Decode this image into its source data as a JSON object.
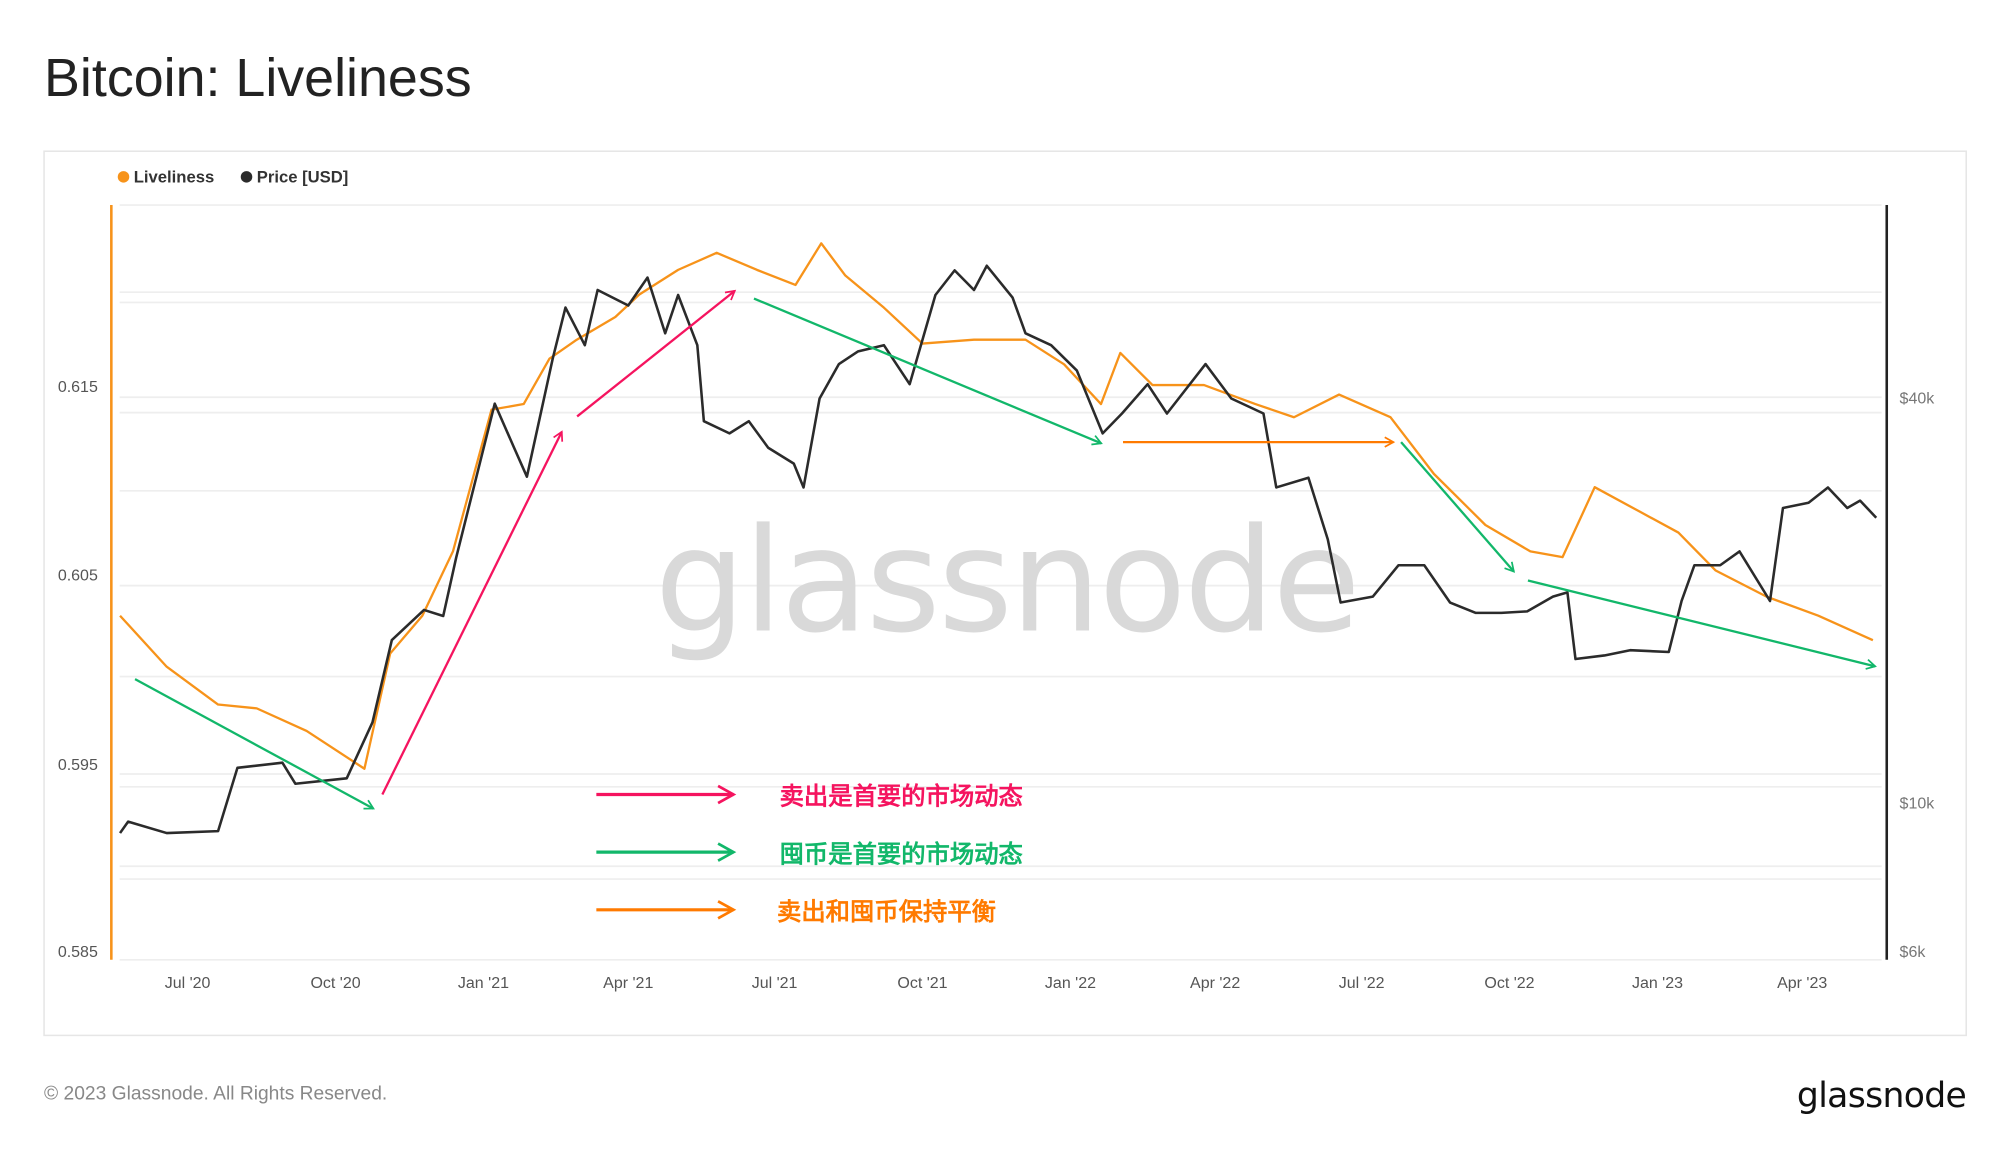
{
  "title": "Bitcoin: Liveliness",
  "footer": {
    "copyright": "© 2023 Glassnode. All Rights Reserved.",
    "logo_text": "glassnode"
  },
  "watermark": "glassnode",
  "colors": {
    "liveliness": "#f7931a",
    "price": "#2b2b2b",
    "sell": "#f5145f",
    "hodl": "#12b76a",
    "balance": "#ff7a00"
  },
  "annotation_legend": [
    {
      "label": "卖出是首要的市场动态",
      "color": "#f5145f"
    },
    {
      "label": "囤币是首要的市场动态",
      "color": "#12b76a"
    },
    {
      "label": "卖出和囤币保持平衡",
      "color": "#ff7a00"
    }
  ],
  "chart_data": {
    "type": "line",
    "title": "Bitcoin: Liveliness",
    "legend": [
      "Liveliness",
      "Price [USD]"
    ],
    "legend_placement": "top-left",
    "grid": true,
    "x_ticks": [
      "Jul '20",
      "Oct '20",
      "Jan '21",
      "Apr '21",
      "Jul '21",
      "Oct '21",
      "Jan '22",
      "Apr '22",
      "Jul '22",
      "Oct '22",
      "Jan '23",
      "Apr '23"
    ],
    "x_range": [
      "2020-05-20",
      "2023-05-17"
    ],
    "y_left": {
      "ticks": [
        "0.585",
        "0.595",
        "0.605",
        "0.615"
      ],
      "scale": "linear"
    },
    "y_right": {
      "ticks": [
        "$6k",
        "$10k",
        "$40k"
      ],
      "scale": "log"
    },
    "series": [
      {
        "name": "Liveliness",
        "axis": "left",
        "color": "#f7931a",
        "points": [
          [
            "2020-05-20",
            0.6029
          ],
          [
            "2020-06-18",
            0.6002
          ],
          [
            "2020-07-20",
            0.5982
          ],
          [
            "2020-08-13",
            0.598
          ],
          [
            "2020-09-13",
            0.5968
          ],
          [
            "2020-10-19",
            0.5948
          ],
          [
            "2020-11-04",
            0.6009
          ],
          [
            "2020-11-24",
            0.6029
          ],
          [
            "2020-12-13",
            0.6063
          ],
          [
            "2021-01-06",
            0.6138
          ],
          [
            "2021-01-26",
            0.6141
          ],
          [
            "2021-02-11",
            0.6165
          ],
          [
            "2021-02-28",
            0.6175
          ],
          [
            "2021-03-24",
            0.6187
          ],
          [
            "2021-04-08",
            0.6199
          ],
          [
            "2021-05-02",
            0.6212
          ],
          [
            "2021-05-26",
            0.6221
          ],
          [
            "2021-06-20",
            0.6212
          ],
          [
            "2021-07-14",
            0.6204
          ],
          [
            "2021-07-30",
            0.6226
          ],
          [
            "2021-08-14",
            0.6209
          ],
          [
            "2021-09-07",
            0.6192
          ],
          [
            "2021-10-01",
            0.6173
          ],
          [
            "2021-11-02",
            0.6175
          ],
          [
            "2021-12-04",
            0.6175
          ],
          [
            "2021-12-28",
            0.6162
          ],
          [
            "2022-01-20",
            0.6141
          ],
          [
            "2022-02-01",
            0.6168
          ],
          [
            "2022-02-21",
            0.6151
          ],
          [
            "2022-03-25",
            0.6151
          ],
          [
            "2022-04-26",
            0.6141
          ],
          [
            "2022-05-20",
            0.6134
          ],
          [
            "2022-06-17",
            0.6146
          ],
          [
            "2022-07-19",
            0.6134
          ],
          [
            "2022-08-15",
            0.6104
          ],
          [
            "2022-09-16",
            0.6077
          ],
          [
            "2022-10-14",
            0.6063
          ],
          [
            "2022-11-03",
            0.606
          ],
          [
            "2022-11-23",
            0.6097
          ],
          [
            "2022-12-21",
            0.6084
          ],
          [
            "2023-01-14",
            0.6073
          ],
          [
            "2023-02-06",
            0.6053
          ],
          [
            "2023-03-10",
            0.6039
          ],
          [
            "2023-04-11",
            0.6029
          ],
          [
            "2023-05-15",
            0.6016
          ]
        ]
      },
      {
        "name": "Price [USD]",
        "axis": "right",
        "color": "#2b2b2b",
        "points": [
          [
            "2020-05-20",
            9040
          ],
          [
            "2020-05-25",
            9400
          ],
          [
            "2020-06-18",
            9040
          ],
          [
            "2020-07-20",
            9100
          ],
          [
            "2020-08-01",
            11300
          ],
          [
            "2020-08-29",
            11500
          ],
          [
            "2020-09-06",
            10700
          ],
          [
            "2020-10-08",
            10900
          ],
          [
            "2020-10-24",
            13200
          ],
          [
            "2020-11-05",
            17500
          ],
          [
            "2020-11-25",
            19400
          ],
          [
            "2020-12-07",
            19000
          ],
          [
            "2020-12-15",
            23200
          ],
          [
            "2021-01-08",
            39300
          ],
          [
            "2021-01-20",
            33800
          ],
          [
            "2021-01-28",
            30600
          ],
          [
            "2021-02-13",
            45800
          ],
          [
            "2021-02-21",
            54600
          ],
          [
            "2021-03-05",
            48000
          ],
          [
            "2021-03-13",
            58000
          ],
          [
            "2021-04-01",
            55000
          ],
          [
            "2021-04-13",
            60500
          ],
          [
            "2021-04-24",
            50000
          ],
          [
            "2021-05-02",
            57000
          ],
          [
            "2021-05-14",
            48000
          ],
          [
            "2021-05-18",
            37000
          ],
          [
            "2021-06-03",
            35500
          ],
          [
            "2021-06-15",
            37000
          ],
          [
            "2021-06-27",
            33800
          ],
          [
            "2021-07-13",
            32000
          ],
          [
            "2021-07-19",
            29500
          ],
          [
            "2021-07-29",
            40000
          ],
          [
            "2021-08-10",
            45000
          ],
          [
            "2021-08-22",
            47000
          ],
          [
            "2021-09-07",
            48000
          ],
          [
            "2021-09-23",
            42000
          ],
          [
            "2021-10-09",
            57000
          ],
          [
            "2021-10-21",
            62000
          ],
          [
            "2021-11-02",
            58000
          ],
          [
            "2021-11-10",
            63000
          ],
          [
            "2021-11-26",
            56500
          ],
          [
            "2021-12-04",
            50000
          ],
          [
            "2021-12-20",
            48000
          ],
          [
            "2022-01-05",
            44000
          ],
          [
            "2022-01-21",
            35500
          ],
          [
            "2022-02-02",
            38000
          ],
          [
            "2022-02-18",
            42000
          ],
          [
            "2022-03-02",
            38000
          ],
          [
            "2022-03-26",
            45000
          ],
          [
            "2022-04-11",
            40000
          ],
          [
            "2022-05-01",
            38000
          ],
          [
            "2022-05-09",
            29500
          ],
          [
            "2022-05-29",
            30500
          ],
          [
            "2022-06-10",
            24700
          ],
          [
            "2022-06-18",
            19900
          ],
          [
            "2022-07-08",
            20300
          ],
          [
            "2022-07-24",
            22600
          ],
          [
            "2022-08-09",
            22600
          ],
          [
            "2022-08-25",
            19900
          ],
          [
            "2022-09-10",
            19200
          ],
          [
            "2022-09-26",
            19200
          ],
          [
            "2022-10-12",
            19300
          ],
          [
            "2022-10-28",
            20300
          ],
          [
            "2022-11-06",
            20600
          ],
          [
            "2022-11-11",
            16400
          ],
          [
            "2022-11-29",
            16600
          ],
          [
            "2022-12-15",
            16900
          ],
          [
            "2023-01-08",
            16800
          ],
          [
            "2023-01-16",
            20000
          ],
          [
            "2023-01-24",
            22600
          ],
          [
            "2023-02-09",
            22600
          ],
          [
            "2023-02-21",
            23700
          ],
          [
            "2023-03-12",
            20000
          ],
          [
            "2023-03-20",
            27500
          ],
          [
            "2023-04-05",
            28000
          ],
          [
            "2023-04-17",
            29500
          ],
          [
            "2023-04-29",
            27500
          ],
          [
            "2023-05-07",
            28200
          ],
          [
            "2023-05-17",
            26600
          ]
        ]
      }
    ]
  }
}
